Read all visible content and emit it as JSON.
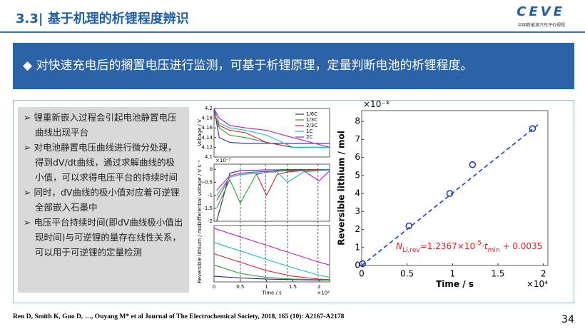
{
  "header": {
    "title": "3.3| 基于机理的析锂程度辨识",
    "logo": "CEVE",
    "logo_subtitle": "中国新能源汽车评价规程"
  },
  "banner": "◆ 对快速充电后的搁置电压进行监测，可基于析锂原理，定量判断电池的析锂程度。",
  "bullets": [
    "➢ 锂重新嵌入过程会引起电池静置电压曲线出现平台",
    "➢ 对电池静置电压曲线进行微分处理，得到dV/dt曲线，通过求解曲线的极小值，可以求得电压平台的持续时间",
    "➢ 同时，dV曲线的极小值对应着可逆锂全部嵌入石墨中",
    "➢ 电压平台持续时间(即dV曲线极小值出现时间)与可逆锂的量存在线性关系，可以用于可逆锂的定量检测"
  ],
  "citation": "Ren D, Smith K, Guo D, …, Ouyang M* et al Journal of The Electrochemical Society, 2018, 165 (10): A2167-A2178",
  "page_number": "34",
  "chart_data": [
    {
      "type": "line",
      "ylabel": "Voltage / V",
      "xlim": [
        0,
        2.2
      ],
      "ylim": [
        4.1,
        4.2
      ],
      "yticks": [
        4.1,
        4.12,
        4.14,
        4.16,
        4.18,
        4.2
      ],
      "x": [
        0,
        0.1,
        0.3,
        0.6,
        1.0,
        1.5,
        2.2
      ],
      "series": [
        {
          "name": "1/6C",
          "color": "#2b2b8c",
          "values": [
            4.2,
            4.14,
            4.13,
            4.128,
            4.128,
            4.128,
            4.128
          ]
        },
        {
          "name": "1/3C",
          "color": "#2ca02c",
          "values": [
            4.19,
            4.16,
            4.145,
            4.14,
            4.13,
            4.12,
            4.12
          ]
        },
        {
          "name": "2/3C",
          "color": "#d62728",
          "values": [
            4.19,
            4.165,
            4.155,
            4.15,
            4.13,
            4.12,
            4.12
          ]
        },
        {
          "name": "1C",
          "color": "#17becf",
          "values": [
            4.2,
            4.17,
            4.16,
            4.155,
            4.145,
            4.12,
            4.12
          ]
        },
        {
          "name": "2C",
          "color": "#c020c0",
          "values": [
            4.2,
            4.18,
            4.165,
            4.16,
            4.155,
            4.14,
            4.12
          ]
        }
      ]
    },
    {
      "type": "line",
      "ylabel": "Differential voltage / V s⁻¹",
      "y_multiplier": "×10⁻³",
      "xlim": [
        0,
        2.2
      ],
      "ylim": [
        -2,
        0.2
      ],
      "yticks": [
        -2,
        -1.5,
        -1,
        -0.5,
        0
      ],
      "x": [
        0.05,
        0.3,
        0.5,
        0.8,
        1.0,
        1.2,
        1.4,
        1.7,
        2.0,
        2.2
      ],
      "series": [
        {
          "color": "#2b2b8c",
          "values": [
            -2,
            -0.15,
            -0.05,
            -0.03,
            -0.02,
            -0.02,
            -0.01,
            -0.01,
            -0.01,
            -0.01
          ]
        },
        {
          "color": "#2ca02c",
          "values": [
            -1.5,
            -0.4,
            -1.3,
            -0.2,
            -0.1,
            -0.05,
            -0.04,
            -0.03,
            -0.02,
            -0.02
          ]
        },
        {
          "color": "#d62728",
          "values": [
            -1.2,
            -0.3,
            -0.2,
            -0.15,
            -1.0,
            -0.2,
            -0.1,
            -0.05,
            -0.03,
            -0.02
          ]
        },
        {
          "color": "#17becf",
          "values": [
            -1,
            -0.3,
            -0.2,
            -0.15,
            -0.12,
            -0.1,
            -0.5,
            -0.1,
            -0.05,
            -0.03
          ]
        },
        {
          "color": "#c020c0",
          "values": [
            -0.8,
            -0.25,
            -0.15,
            -0.1,
            -0.08,
            -0.07,
            -0.06,
            -0.05,
            -0.45,
            -0.05
          ]
        }
      ]
    },
    {
      "type": "line",
      "ylabel": "Reversible lithium / mol",
      "xlabel": "Time / s",
      "x_multiplier": "×10⁴",
      "xlim": [
        0,
        2.2
      ],
      "ylim": [
        0,
        1
      ],
      "xticks": [
        0,
        0.5,
        1,
        1.5,
        2
      ],
      "markers": [
        0.5,
        0.98,
        1.4,
        1.98
      ],
      "x": [
        0,
        0.5,
        1.0,
        1.5,
        2.0,
        2.2
      ],
      "series": [
        {
          "color": "#2b2b8c",
          "values": [
            0.1,
            0.07,
            0.05,
            0.04,
            0.03,
            0.03
          ]
        },
        {
          "color": "#2ca02c",
          "values": [
            0.3,
            0.15,
            0.08,
            0.05,
            0.04,
            0.03
          ]
        },
        {
          "color": "#d62728",
          "values": [
            0.5,
            0.35,
            0.2,
            0.1,
            0.05,
            0.04
          ]
        },
        {
          "color": "#17becf",
          "values": [
            0.7,
            0.55,
            0.4,
            0.25,
            0.12,
            0.08
          ]
        },
        {
          "color": "#c020c0",
          "values": [
            0.95,
            0.8,
            0.65,
            0.5,
            0.35,
            0.3
          ]
        }
      ]
    },
    {
      "type": "scatter",
      "xlabel": "Time / s",
      "ylabel": "Reversible lithium / mol",
      "x_multiplier": "×10⁴",
      "y_multiplier": "×10⁻³",
      "xlim": [
        0,
        2.05
      ],
      "ylim": [
        0,
        8.6
      ],
      "xticks": [
        0,
        0.5,
        1,
        1.5,
        2
      ],
      "yticks": [
        0,
        1,
        2,
        3,
        4,
        5,
        6,
        7,
        8
      ],
      "color": "#1f3fbf",
      "x": [
        0.01,
        0.52,
        0.97,
        1.22,
        1.88
      ],
      "values": [
        0.1,
        2.2,
        4.0,
        5.6,
        7.6
      ],
      "fit": {
        "x": [
          0,
          1.95
        ],
        "values": [
          0,
          7.85
        ]
      },
      "annotation": {
        "color": "#e02020",
        "parts": [
          "N",
          "Li,rev",
          "=1.2367×10",
          "-5",
          "·t",
          "min",
          " + 0.0035"
        ]
      }
    }
  ]
}
